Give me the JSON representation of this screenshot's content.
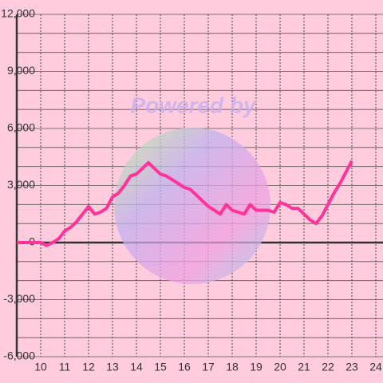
{
  "chart_data": {
    "type": "line",
    "watermark": "Powered by",
    "x": [
      9,
      9.25,
      9.5,
      9.75,
      10,
      10.25,
      10.5,
      10.75,
      11,
      11.25,
      11.5,
      11.75,
      12,
      12.25,
      12.5,
      12.75,
      13,
      13.25,
      13.5,
      13.75,
      14,
      14.25,
      14.5,
      14.75,
      15,
      15.25,
      15.5,
      15.75,
      16,
      16.25,
      16.5,
      16.75,
      17,
      17.25,
      17.5,
      17.75,
      18,
      18.25,
      18.5,
      18.75,
      19,
      19.25,
      19.5,
      19.75,
      20,
      20.25,
      20.5,
      20.75,
      21,
      21.25,
      21.5,
      21.75,
      22,
      22.25,
      22.5,
      22.75,
      23
    ],
    "series": [
      {
        "color": "#ff3399",
        "values": [
          0,
          0,
          0,
          0,
          0,
          -150,
          0,
          200,
          600,
          800,
          1100,
          1500,
          1900,
          1500,
          1600,
          1800,
          2400,
          2600,
          3000,
          3500,
          3600,
          3900,
          4200,
          3900,
          3600,
          3500,
          3300,
          3100,
          2900,
          2800,
          2500,
          2200,
          1900,
          1700,
          1500,
          2000,
          1700,
          1600,
          1500,
          2000,
          1700,
          1700,
          1700,
          1600,
          2100,
          2000,
          1800,
          1800,
          1500,
          1200,
          1000,
          1400,
          2000,
          2600,
          3100,
          3700,
          4300
        ]
      }
    ],
    "xlim": [
      9,
      24.3
    ],
    "xticks": [
      10,
      11,
      12,
      13,
      14,
      15,
      16,
      17,
      18,
      19,
      20,
      21,
      22,
      23,
      24
    ],
    "ylim": [
      -6000,
      12000
    ],
    "yticks": [
      {
        "value": -6000,
        "label": "-6,000"
      },
      {
        "value": -3000,
        "label": "-3,000"
      },
      0,
      {
        "value": 3000,
        "label": "3,000"
      },
      {
        "value": 6000,
        "label": "6,000"
      },
      {
        "value": 9000,
        "label": "9,000"
      },
      {
        "value": 12000,
        "label": "12,000"
      }
    ],
    "y_minor_ticks": [
      -5000,
      -4000,
      -2000,
      -1000,
      1000,
      2000,
      4000,
      5000,
      7000,
      8000,
      10000,
      11000
    ],
    "grid": true
  }
}
